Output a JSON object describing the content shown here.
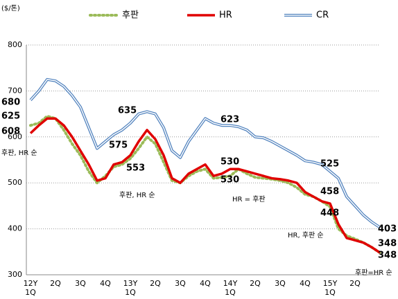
{
  "chart_data": {
    "type": "line",
    "y_unit": "($/톤)",
    "categories": [
      "12Y\n1Q",
      null,
      null,
      "2Q",
      null,
      null,
      "3Q",
      null,
      null,
      "4Q",
      null,
      null,
      "13Y\n1Q",
      null,
      null,
      "2Q",
      null,
      null,
      "3Q",
      null,
      null,
      "4Q",
      null,
      null,
      "14Y\n1Q",
      null,
      null,
      "2Q",
      null,
      null,
      "3Q",
      null,
      null,
      "4Q",
      null,
      null,
      "15Y\n1Q",
      null,
      null,
      "2Q",
      null,
      null,
      null
    ],
    "series": [
      {
        "name": "후판",
        "color": "#9bbb59",
        "style": "dotted",
        "values": [
          625,
          630,
          645,
          640,
          615,
          585,
          560,
          525,
          500,
          515,
          535,
          540,
          553,
          575,
          600,
          585,
          545,
          505,
          500,
          515,
          525,
          530,
          510,
          512,
          515,
          530,
          520,
          512,
          510,
          508,
          505,
          500,
          490,
          475,
          470,
          460,
          448,
          400,
          385,
          378,
          370,
          360,
          348
        ]
      },
      {
        "name": "HR",
        "color": "#e00000",
        "style": "solid",
        "values": [
          608,
          625,
          640,
          640,
          625,
          600,
          570,
          540,
          505,
          510,
          540,
          545,
          560,
          590,
          615,
          595,
          560,
          510,
          500,
          520,
          530,
          540,
          515,
          520,
          530,
          530,
          525,
          520,
          515,
          510,
          508,
          505,
          500,
          480,
          470,
          460,
          455,
          410,
          380,
          375,
          370,
          360,
          348
        ]
      },
      {
        "name": "CR",
        "color": "#4f81bd",
        "style": "double",
        "values": [
          680,
          700,
          725,
          722,
          710,
          690,
          665,
          620,
          575,
          590,
          605,
          615,
          630,
          650,
          655,
          650,
          620,
          570,
          555,
          590,
          615,
          640,
          630,
          625,
          625,
          622,
          615,
          600,
          598,
          590,
          580,
          570,
          560,
          548,
          545,
          540,
          525,
          510,
          470,
          450,
          430,
          415,
          403
        ]
      }
    ],
    "ylim": [
      300,
      800
    ],
    "yticks": [
      300,
      400,
      500,
      600,
      700,
      800
    ],
    "grid": true,
    "legend": "top",
    "annotations": [
      "680",
      "625",
      "608",
      "후판, HR 순",
      "635",
      "575",
      "553",
      "후판, HR 순",
      "623",
      "530",
      "530",
      "HR = 후판",
      "525",
      "458",
      "448",
      "HR, 후판 순",
      "403",
      "348",
      "348",
      "후판=HR 순"
    ]
  }
}
